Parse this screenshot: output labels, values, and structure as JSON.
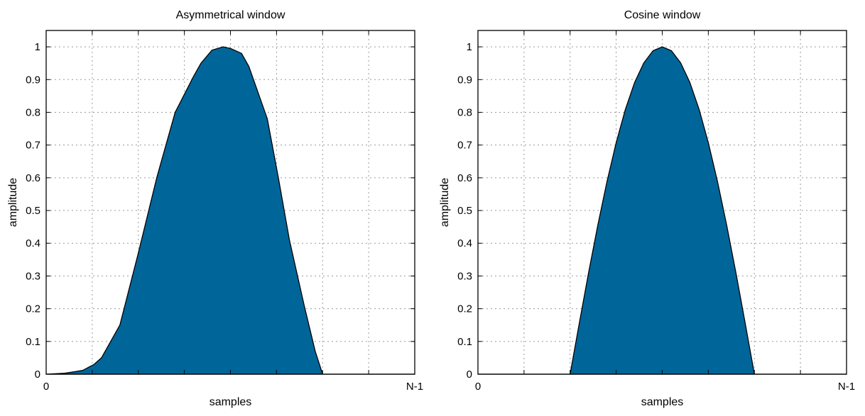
{
  "chart_data": [
    {
      "type": "area",
      "title": "Asymmetrical window",
      "xlabel": "samples",
      "ylabel": "amplitude",
      "xlim": [
        0,
        1
      ],
      "ylim": [
        0,
        1.05
      ],
      "xticklabels": [
        "0",
        "N-1"
      ],
      "yticks": [
        0,
        0.1,
        0.2,
        0.3,
        0.4,
        0.5,
        0.6,
        0.7,
        0.8,
        0.9,
        1
      ],
      "yticklabels": [
        "0",
        "0.1",
        "0.2",
        "0.3",
        "0.4",
        "0.5",
        "0.6",
        "0.7",
        "0.8",
        "0.9",
        "1"
      ],
      "grid": true,
      "fill_color": "#00669a",
      "x": [
        0,
        0.05,
        0.08,
        0.1,
        0.13,
        0.15,
        0.2,
        0.25,
        0.3,
        0.35,
        0.4,
        0.42,
        0.45,
        0.48,
        0.5,
        0.53,
        0.55,
        0.6,
        0.63,
        0.66,
        0.7,
        0.73,
        0.75,
        1
      ],
      "y": [
        0,
        0.003,
        0.008,
        0.012,
        0.03,
        0.05,
        0.15,
        0.37,
        0.6,
        0.8,
        0.91,
        0.95,
        0.99,
        1.0,
        0.995,
        0.98,
        0.94,
        0.78,
        0.6,
        0.41,
        0.21,
        0.07,
        0,
        0
      ]
    },
    {
      "type": "area",
      "title": "Cosine window",
      "xlabel": "samples",
      "ylabel": "amplitude",
      "xlim": [
        0,
        1
      ],
      "ylim": [
        0,
        1.05
      ],
      "xticklabels": [
        "0",
        "N-1"
      ],
      "yticks": [
        0,
        0.1,
        0.2,
        0.3,
        0.4,
        0.5,
        0.6,
        0.7,
        0.8,
        0.9,
        1
      ],
      "yticklabels": [
        "0",
        "0.1",
        "0.2",
        "0.3",
        "0.4",
        "0.5",
        "0.6",
        "0.7",
        "0.8",
        "0.9",
        "1"
      ],
      "grid": true,
      "fill_color": "#00669a",
      "window_start": 0.25,
      "window_end": 0.75,
      "x": [
        0,
        0.25,
        0.275,
        0.3,
        0.325,
        0.35,
        0.375,
        0.4,
        0.425,
        0.45,
        0.475,
        0.5,
        0.525,
        0.55,
        0.575,
        0.6,
        0.625,
        0.65,
        0.675,
        0.7,
        0.725,
        0.75,
        1
      ],
      "y": [
        0,
        0,
        0.156,
        0.309,
        0.454,
        0.588,
        0.707,
        0.809,
        0.891,
        0.951,
        0.988,
        1.0,
        0.988,
        0.951,
        0.891,
        0.809,
        0.707,
        0.588,
        0.454,
        0.309,
        0.156,
        0,
        0
      ]
    }
  ]
}
